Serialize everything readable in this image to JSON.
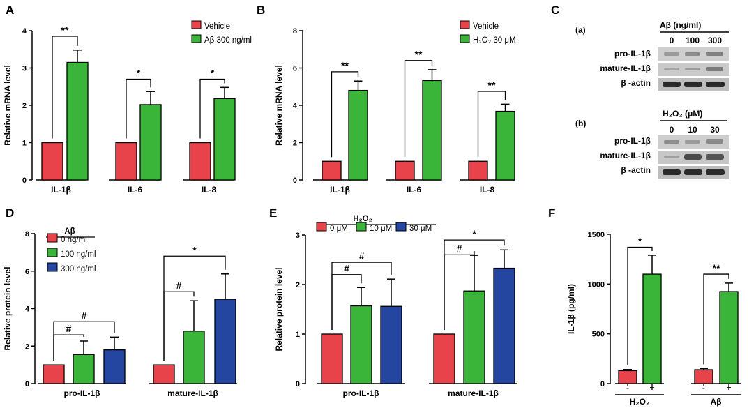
{
  "figure": {
    "panel_labels": [
      "A",
      "B",
      "C",
      "D",
      "E",
      "F"
    ]
  },
  "chart_data": [
    {
      "id": "A",
      "type": "bar",
      "categories": [
        "IL-1β",
        "IL-6",
        "IL-8"
      ],
      "series": [
        {
          "name": "Vehicle",
          "color": "#e8434a",
          "values": [
            1,
            1,
            1
          ],
          "errors": [
            0,
            0,
            0
          ]
        },
        {
          "name": "Aβ 300 ng/ml",
          "color": "#3ab53a",
          "values": [
            3.15,
            2.02,
            2.18
          ],
          "errors": [
            0.33,
            0.35,
            0.3
          ]
        }
      ],
      "ylabel": "Relative mRNA level",
      "ylim": [
        0,
        4
      ],
      "yticks": [
        0,
        1,
        2,
        3,
        4
      ],
      "legend": "top-right",
      "significance": [
        {
          "category": 0,
          "from_series": 0,
          "to_series": 1,
          "label": "**",
          "top": 3.85
        },
        {
          "category": 1,
          "from_series": 0,
          "to_series": 1,
          "label": "*",
          "top": 2.7
        },
        {
          "category": 2,
          "from_series": 0,
          "to_series": 1,
          "label": "*",
          "top": 2.7
        }
      ]
    },
    {
      "id": "B",
      "type": "bar",
      "categories": [
        "IL-1β",
        "IL-6",
        "IL-8"
      ],
      "series": [
        {
          "name": "Vehicle",
          "color": "#e8434a",
          "values": [
            1,
            1,
            1
          ],
          "errors": [
            0,
            0,
            0
          ]
        },
        {
          "name": "H₂O₂ 30 μM",
          "color": "#3ab53a",
          "values": [
            4.8,
            5.33,
            3.68
          ],
          "errors": [
            0.5,
            0.58,
            0.38
          ]
        }
      ],
      "ylabel": "Relative mRNA level",
      "ylim": [
        0,
        8
      ],
      "yticks": [
        0,
        2,
        4,
        6,
        8
      ],
      "legend": "top-right",
      "significance": [
        {
          "category": 0,
          "from_series": 0,
          "to_series": 1,
          "label": "**",
          "top": 5.8
        },
        {
          "category": 1,
          "from_series": 0,
          "to_series": 1,
          "label": "**",
          "top": 6.4
        },
        {
          "category": 2,
          "from_series": 0,
          "to_series": 1,
          "label": "**",
          "top": 4.75
        }
      ]
    },
    {
      "id": "D",
      "type": "bar",
      "categories": [
        "pro-IL-1β",
        "mature-IL-1β"
      ],
      "legend_title": "Aβ",
      "series": [
        {
          "name": "0 ng/ml",
          "color": "#e8434a",
          "values": [
            1,
            1
          ],
          "errors": [
            0,
            0
          ]
        },
        {
          "name": "100 ng/ml",
          "color": "#3ab53a",
          "values": [
            1.55,
            2.8
          ],
          "errors": [
            0.72,
            1.62
          ]
        },
        {
          "name": "300 ng/ml",
          "color": "#2446a0",
          "values": [
            1.8,
            4.5
          ],
          "errors": [
            0.68,
            1.35
          ]
        }
      ],
      "ylabel": "Relative protein level",
      "ylim": [
        0,
        8
      ],
      "yticks": [
        0,
        2,
        4,
        6,
        8
      ],
      "legend": "top-left",
      "significance": [
        {
          "category": 0,
          "from_series": 0,
          "to_series": 1,
          "label": "#",
          "top": 2.6
        },
        {
          "category": 0,
          "from_series": 0,
          "to_series": 2,
          "label": "#",
          "top": 3.3
        },
        {
          "category": 1,
          "from_series": 0,
          "to_series": 1,
          "label": "#",
          "top": 4.9
        },
        {
          "category": 1,
          "from_series": 0,
          "to_series": 2,
          "label": "*",
          "top": 6.8
        }
      ]
    },
    {
      "id": "E",
      "type": "bar",
      "categories": [
        "pro-IL-1β",
        "mature-IL-1β"
      ],
      "legend_title": "H₂O₂",
      "series": [
        {
          "name": "0 μM",
          "color": "#e8434a",
          "values": [
            1,
            1
          ],
          "errors": [
            0,
            0
          ]
        },
        {
          "name": "10 μM",
          "color": "#3ab53a",
          "values": [
            1.57,
            1.87
          ],
          "errors": [
            0.37,
            0.72
          ]
        },
        {
          "name": "30 μM",
          "color": "#2446a0",
          "values": [
            1.56,
            2.33
          ],
          "errors": [
            0.55,
            0.37
          ]
        }
      ],
      "ylabel": "Relative protein level",
      "ylim": [
        0,
        3
      ],
      "yticks": [
        0,
        1,
        2,
        3
      ],
      "legend": "top",
      "significance": [
        {
          "category": 0,
          "from_series": 0,
          "to_series": 1,
          "label": "#",
          "top": 2.2
        },
        {
          "category": 0,
          "from_series": 0,
          "to_series": 2,
          "label": "#",
          "top": 2.45
        },
        {
          "category": 1,
          "from_series": 0,
          "to_series": 1,
          "label": "#",
          "top": 2.6
        },
        {
          "category": 1,
          "from_series": 0,
          "to_series": 2,
          "label": "*",
          "top": 2.9
        }
      ]
    },
    {
      "id": "F",
      "type": "bar",
      "categories": [
        "H₂O₂",
        "Aβ"
      ],
      "sublabels": [
        "-",
        "+"
      ],
      "series": [
        {
          "name": "-",
          "color": "#e8434a",
          "values": [
            130,
            140
          ],
          "errors": [
            12,
            12
          ]
        },
        {
          "name": "+",
          "color": "#3ab53a",
          "values": [
            1100,
            925
          ],
          "errors": [
            190,
            85
          ]
        }
      ],
      "ylabel": "IL-1β  (pg/ml)",
      "ylim": [
        0,
        1500
      ],
      "yticks": [
        0,
        500,
        1000,
        1500
      ],
      "significance": [
        {
          "category": 0,
          "from_series": 0,
          "to_series": 1,
          "label": "*",
          "top": 1370
        },
        {
          "category": 1,
          "from_series": 0,
          "to_series": 1,
          "label": "**",
          "top": 1100
        }
      ]
    }
  ],
  "western_blots": {
    "panel": "C",
    "blots": [
      {
        "tag": "(a)",
        "treatment": "Aβ  (ng/ml)",
        "doses": [
          "0",
          "100",
          "300"
        ],
        "rows": [
          "pro-IL-1β",
          "mature-IL-1β",
          "β -actin"
        ]
      },
      {
        "tag": "(b)",
        "treatment": "H₂O₂ (μM)",
        "doses": [
          "0",
          "10",
          "30"
        ],
        "rows": [
          "pro-IL-1β",
          "mature-IL-1β",
          "β -actin"
        ]
      }
    ]
  }
}
